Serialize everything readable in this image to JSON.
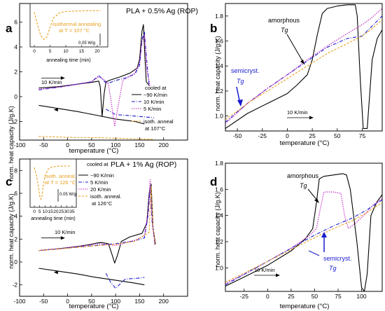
{
  "chart_data": [
    {
      "panel": "a",
      "type": "line",
      "title": "PLA + 0.5% Ag (ROP)",
      "xlabel": "temperature (°C)",
      "ylabel": "norm. heat capacity (J/g.K)",
      "xlim": [
        -100,
        250
      ],
      "ylim": [
        -3.5,
        7.5
      ],
      "xticks": [
        -100,
        -50,
        0,
        50,
        100,
        150,
        200
      ],
      "yticks": [
        -2,
        0,
        2,
        4,
        6
      ],
      "legend_title": "cooled at",
      "legend": [
        "~90 K/min",
        "10 K/min",
        "5 K/min",
        "isoth. anneal at 107°C"
      ],
      "annotations": [
        "10 K/min"
      ],
      "series": [
        {
          "style": "solid",
          "color": "#000000",
          "x": [
            -60,
            -20,
            20,
            50,
            65,
            68,
            72,
            76,
            80,
            90,
            110,
            130,
            145,
            150,
            155,
            158,
            161,
            164,
            170
          ],
          "y": [
            0.7,
            0.8,
            1.0,
            1.15,
            1.25,
            0.8,
            -1.6,
            0.2,
            1.2,
            1.35,
            1.6,
            1.9,
            2.3,
            3.0,
            5.3,
            5.8,
            3.2,
            1.2,
            0.9
          ]
        },
        {
          "style": "solid",
          "color": "#000000",
          "x": [
            -60,
            -20,
            20,
            60,
            100,
            140,
            160
          ],
          "y": [
            -0.7,
            -0.95,
            -1.2,
            -1.5,
            -1.8,
            -2.0,
            -2.2
          ]
        },
        {
          "style": "dashdot",
          "color": "#1a1ad0",
          "x": [
            -60,
            -20,
            20,
            50,
            65,
            75,
            80,
            90,
            100,
            120,
            140,
            150,
            155,
            160,
            165,
            170
          ],
          "y": [
            0.55,
            0.75,
            1.0,
            1.2,
            1.7,
            1.3,
            1.1,
            1.15,
            1.3,
            1.5,
            1.8,
            2.5,
            4.6,
            5.2,
            2.8,
            0.9
          ]
        },
        {
          "style": "dashdot",
          "color": "#1a1ad0",
          "x": [
            80,
            100,
            120,
            150,
            180
          ],
          "y": [
            -1.0,
            -1.45,
            -1.5,
            -1.6,
            -1.7
          ]
        },
        {
          "style": "dotted",
          "color": "#c020c0",
          "x": [
            -60,
            -20,
            20,
            50,
            65,
            75,
            85,
            93,
            98,
            104,
            115,
            140,
            150,
            155,
            160,
            165,
            172
          ],
          "y": [
            0.6,
            0.75,
            1.0,
            1.2,
            1.6,
            1.4,
            1.0,
            -1.0,
            -2.4,
            -1.0,
            1.3,
            1.9,
            2.7,
            4.4,
            5.0,
            2.2,
            0.8
          ]
        },
        {
          "style": "dashed",
          "color": "#e8a020",
          "x": [
            -60,
            -20,
            20,
            60,
            100,
            140,
            180
          ],
          "y": [
            -3.2,
            -3.25,
            -3.3,
            -3.3,
            -3.35,
            -3.4,
            -3.45
          ]
        }
      ],
      "inset": {
        "label": "isothermal annealing at T = 107 °C",
        "xlabel": "annealing time (min)",
        "xlim": [
          0,
          22
        ],
        "xticks": [
          0,
          5,
          10,
          15,
          20
        ],
        "scalebar": "0.05 W/g",
        "series": [
          {
            "style": "dashed",
            "color": "#e8a020",
            "x": [
              0,
              1,
              2,
              3,
              4,
              5,
              6,
              8,
              10,
              14,
              18,
              21
            ],
            "y": [
              0.9,
              0.5,
              0.15,
              0.02,
              0.1,
              0.4,
              0.7,
              0.88,
              0.92,
              0.94,
              0.95,
              0.95
            ]
          }
        ]
      }
    },
    {
      "panel": "b",
      "type": "line",
      "xlabel": "temperature (°C)",
      "ylabel": "norm. heat capacity (J/g.K)",
      "xlim": [
        -62,
        95
      ],
      "ylim": [
        0.88,
        1.9
      ],
      "xticks": [
        -50,
        -25,
        0,
        25,
        50,
        75
      ],
      "yticks": [
        1.0,
        1.2,
        1.4,
        1.6,
        1.8
      ],
      "annotations": [
        "amorphous Tg",
        "semicryst. Tg",
        "10 K/min"
      ],
      "series": [
        {
          "style": "solid",
          "color": "#000000",
          "x": [
            -62,
            -40,
            -20,
            0,
            10,
            20,
            25,
            30,
            35,
            40,
            50,
            60,
            68,
            70,
            73,
            76,
            80,
            85,
            90,
            95
          ],
          "y": [
            0.9,
            1.02,
            1.1,
            1.18,
            1.25,
            1.33,
            1.45,
            1.65,
            1.82,
            1.86,
            1.88,
            1.89,
            1.89,
            1.8,
            1.3,
            0.9,
            0.9,
            1.45,
            1.62,
            1.69
          ]
        },
        {
          "style": "dashdot",
          "color": "#1a1ad0",
          "x": [
            -62,
            -40,
            -20,
            0,
            20,
            40,
            60,
            75,
            85,
            95
          ],
          "y": [
            0.95,
            1.1,
            1.22,
            1.33,
            1.44,
            1.55,
            1.62,
            1.64,
            1.72,
            1.8
          ]
        },
        {
          "style": "dotted",
          "color": "#c020c0",
          "x": [
            -62,
            -40,
            -20,
            0,
            20,
            40,
            60,
            75,
            85,
            95
          ],
          "y": [
            0.94,
            1.1,
            1.22,
            1.33,
            1.45,
            1.56,
            1.66,
            1.73,
            1.79,
            1.86
          ]
        },
        {
          "style": "dashed",
          "color": "#e8a020",
          "x": [
            -62,
            -40,
            -20,
            0,
            20,
            40,
            60,
            75,
            85,
            95
          ],
          "y": [
            0.97,
            1.1,
            1.2,
            1.3,
            1.4,
            1.5,
            1.58,
            1.64,
            1.7,
            1.77
          ]
        }
      ]
    },
    {
      "panel": "c",
      "type": "line",
      "title": "PLA + 1% Ag (ROP)",
      "xlabel": "temperature (°C)",
      "ylabel": "norm. heat capacity (J/g.K)",
      "xlim": [
        -100,
        250
      ],
      "ylim": [
        -3,
        9
      ],
      "xticks": [
        -100,
        -50,
        0,
        50,
        100,
        150,
        200
      ],
      "yticks": [
        -2,
        0,
        2,
        4,
        6,
        8
      ],
      "legend_title": "cooled at",
      "legend": [
        "~90 K/min",
        "5 K/min",
        "20 K/min",
        "isoth. anneal. at 126°C"
      ],
      "annotations": [
        "10 K/min"
      ],
      "series": [
        {
          "style": "solid",
          "color": "#000000",
          "x": [
            -60,
            -20,
            20,
            50,
            60,
            70,
            85,
            93,
            98,
            104,
            112,
            130,
            155,
            165,
            170,
            174,
            178,
            183
          ],
          "y": [
            1.0,
            1.15,
            1.35,
            1.55,
            1.65,
            1.7,
            1.6,
            0.6,
            -0.1,
            0.6,
            1.8,
            2.2,
            2.5,
            3.4,
            6.0,
            6.8,
            3.0,
            1.6
          ]
        },
        {
          "style": "solid",
          "color": "#000000",
          "x": [
            -60,
            -20,
            20,
            60,
            100,
            140,
            160
          ],
          "y": [
            -0.55,
            -0.8,
            -1.05,
            -1.35,
            -1.6,
            -1.85,
            -2.0
          ]
        },
        {
          "style": "dashdot",
          "color": "#1a1ad0",
          "x": [
            -60,
            -20,
            20,
            60,
            100,
            140,
            160,
            168,
            172,
            176,
            182
          ],
          "y": [
            1.0,
            1.15,
            1.3,
            1.45,
            1.6,
            1.85,
            2.1,
            4.2,
            6.5,
            3.5,
            1.5
          ]
        },
        {
          "style": "dashdot",
          "color": "#1a1ad0",
          "x": [
            80,
            90,
            100,
            110,
            120,
            150,
            160
          ],
          "y": [
            -1.0,
            -1.8,
            -2.3,
            -1.9,
            -1.5,
            -1.4,
            -1.35
          ]
        },
        {
          "style": "dotted",
          "color": "#c020c0",
          "x": [
            -60,
            -20,
            20,
            50,
            60,
            70,
            85,
            100,
            115,
            140,
            160,
            168,
            172,
            176,
            182
          ],
          "y": [
            1.0,
            1.15,
            1.35,
            1.5,
            1.6,
            1.6,
            1.5,
            1.45,
            1.6,
            1.9,
            2.3,
            4.5,
            7.2,
            3.6,
            1.4
          ]
        },
        {
          "style": "dashed",
          "color": "#e8a020",
          "x": [
            -60,
            -20,
            20,
            60,
            100,
            140,
            170,
            174,
            178,
            183
          ],
          "y": [
            1.0,
            1.12,
            1.28,
            1.42,
            1.55,
            1.8,
            2.6,
            6.6,
            3.0,
            1.5
          ]
        }
      ],
      "inset": {
        "label": "isoth. anneal. at T = 126 °C",
        "xlabel": "annealing time (min)",
        "xlim": [
          0,
          35
        ],
        "xticks": [
          0,
          5,
          10,
          15,
          20,
          25,
          30,
          35
        ],
        "scalebar": "0.05 W/g",
        "series": [
          {
            "style": "dashed",
            "color": "#e8a020",
            "x": [
              0,
              2,
              4,
              5,
              6,
              7,
              8,
              10,
              13,
              16,
              20,
              26,
              33
            ],
            "y": [
              0.92,
              0.7,
              0.35,
              0.12,
              0.03,
              0.1,
              0.35,
              0.7,
              0.88,
              0.93,
              0.95,
              0.96,
              0.96
            ]
          }
        ]
      }
    },
    {
      "panel": "d",
      "type": "line",
      "xlabel": "temperature (°C)",
      "ylabel": "norm. heat capacity (J/g.K)",
      "xlim": [
        -45,
        122
      ],
      "ylim": [
        0.82,
        1.8
      ],
      "xticks": [
        -25,
        0,
        25,
        50,
        75,
        100
      ],
      "yticks": [
        1.0,
        1.2,
        1.4,
        1.6,
        1.8
      ],
      "annotations": [
        "amorphous Tg",
        "semicryst. Tg",
        "10 K/min"
      ],
      "series": [
        {
          "style": "solid",
          "color": "#000000",
          "x": [
            -45,
            -25,
            0,
            25,
            40,
            48,
            52,
            55,
            60,
            70,
            80,
            84,
            88,
            95,
            100,
            103,
            106,
            110,
            116,
            122
          ],
          "y": [
            0.86,
            0.93,
            1.02,
            1.13,
            1.22,
            1.3,
            1.5,
            1.68,
            1.7,
            1.71,
            1.72,
            1.71,
            1.6,
            1.2,
            0.85,
            0.82,
            0.95,
            1.4,
            1.5,
            1.56
          ]
        },
        {
          "style": "dotted",
          "color": "#c020c0",
          "x": [
            -45,
            -25,
            0,
            25,
            45,
            52,
            56,
            60,
            70,
            78,
            82,
            86,
            95,
            105,
            112,
            122
          ],
          "y": [
            0.88,
            0.95,
            1.05,
            1.15,
            1.25,
            1.3,
            1.45,
            1.58,
            1.58,
            1.57,
            1.4,
            1.3,
            1.35,
            1.42,
            1.48,
            1.53
          ]
        },
        {
          "style": "dashdot",
          "color": "#1a1ad0",
          "x": [
            -45,
            -25,
            0,
            25,
            50,
            70,
            90,
            105,
            122
          ],
          "y": [
            0.87,
            0.95,
            1.05,
            1.15,
            1.25,
            1.32,
            1.38,
            1.44,
            1.52
          ]
        },
        {
          "style": "dashed",
          "color": "#e8a020",
          "x": [
            -45,
            -25,
            0,
            25,
            50,
            70,
            90,
            105,
            122
          ],
          "y": [
            0.89,
            0.96,
            1.05,
            1.14,
            1.23,
            1.3,
            1.36,
            1.42,
            1.5
          ]
        }
      ]
    }
  ],
  "panels": {
    "a": {
      "letter": "a",
      "title": "PLA + 0.5% Ag (ROP)",
      "xlabel": "temperature (°C)",
      "ylabel": "norm. heat capacity (J/g.K)",
      "rate_label": "10 K/min",
      "legend_title": "cooled at",
      "legend": [
        "~90 K/min",
        "10 K/min",
        "5 K/min"
      ],
      "legend_extra1": "isoth. anneal",
      "legend_extra2": "at 107°C",
      "inset_line1": "isothermal annealing",
      "inset_line2": "at T = 107 °C",
      "inset_xlabel": "annealing time (min)",
      "inset_scale": "0.05 W/g"
    },
    "b": {
      "letter": "b",
      "xlabel": "temperature (°C)",
      "ylabel": "norm. heat capacity (J/g.K)",
      "amorphous": "amorphous",
      "amorphous_tg": "Tg",
      "semicryst": "semicryst.",
      "semicryst_tg": "Tg",
      "rate_label": "10 K/min"
    },
    "c": {
      "letter": "c",
      "title": "PLA + 1% Ag (ROP)",
      "xlabel": "temperature (°C)",
      "ylabel": "norm. heat capacity (J/g.K)",
      "rate_label": "10 K/min",
      "legend_title": "cooled at",
      "legend": [
        "~90 K/min",
        "5 K/min",
        "20 K/min"
      ],
      "legend_extra1": "isoth. anneal.",
      "legend_extra2": "at 126°C",
      "inset_line1": "isoth. anneal.",
      "inset_line2": "at T = 126 °C",
      "inset_xlabel": "annealing time (min)",
      "inset_scale": "0.05 W/g"
    },
    "d": {
      "letter": "d",
      "xlabel": "temperature (°C)",
      "ylabel": "norm. heat capacity (J/g.K)",
      "amorphous": "amorphous",
      "amorphous_tg": "Tg",
      "semicryst": "semicryst.",
      "semicryst_tg": "Tg",
      "rate_label": "10 K/min"
    }
  }
}
